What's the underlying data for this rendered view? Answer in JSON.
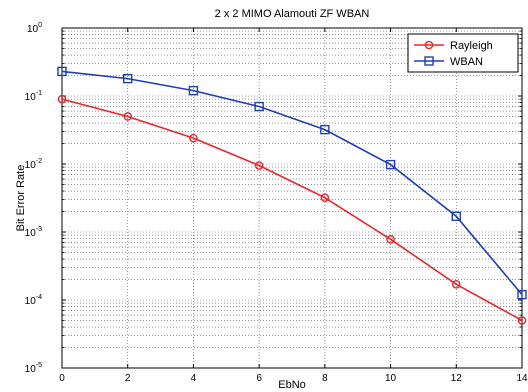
{
  "chart_data": {
    "type": "line",
    "title": "2 x 2 MIMO Alamouti ZF WBAN",
    "xlabel": "EbNo",
    "ylabel": "Bit Error Rate",
    "x": [
      0,
      2,
      4,
      6,
      8,
      10,
      12,
      14
    ],
    "xlim": [
      0,
      14
    ],
    "ylim": [
      1e-05,
      1
    ],
    "yscale": "log",
    "grid": true,
    "legend_position": "top-right",
    "x_ticks": [
      "0",
      "2",
      "4",
      "6",
      "8",
      "10",
      "12",
      "14"
    ],
    "y_ticks": [
      {
        "base": "10",
        "exp": "0",
        "value": 1
      },
      {
        "base": "10",
        "exp": "-1",
        "value": 0.1
      },
      {
        "base": "10",
        "exp": "-2",
        "value": 0.01
      },
      {
        "base": "10",
        "exp": "-3",
        "value": 0.001
      },
      {
        "base": "10",
        "exp": "-4",
        "value": 0.0001
      },
      {
        "base": "10",
        "exp": "-5",
        "value": 1e-05
      }
    ],
    "series": [
      {
        "name": "Rayleigh",
        "color": "#e8262a",
        "marker": "circle",
        "values": [
          0.09,
          0.05,
          0.024,
          0.0095,
          0.0032,
          0.00078,
          0.00017,
          5e-05
        ]
      },
      {
        "name": "WBAN",
        "color": "#1f3fb4",
        "marker": "square",
        "values": [
          0.23,
          0.18,
          0.12,
          0.07,
          0.032,
          0.0098,
          0.0017,
          0.00012
        ]
      }
    ]
  }
}
